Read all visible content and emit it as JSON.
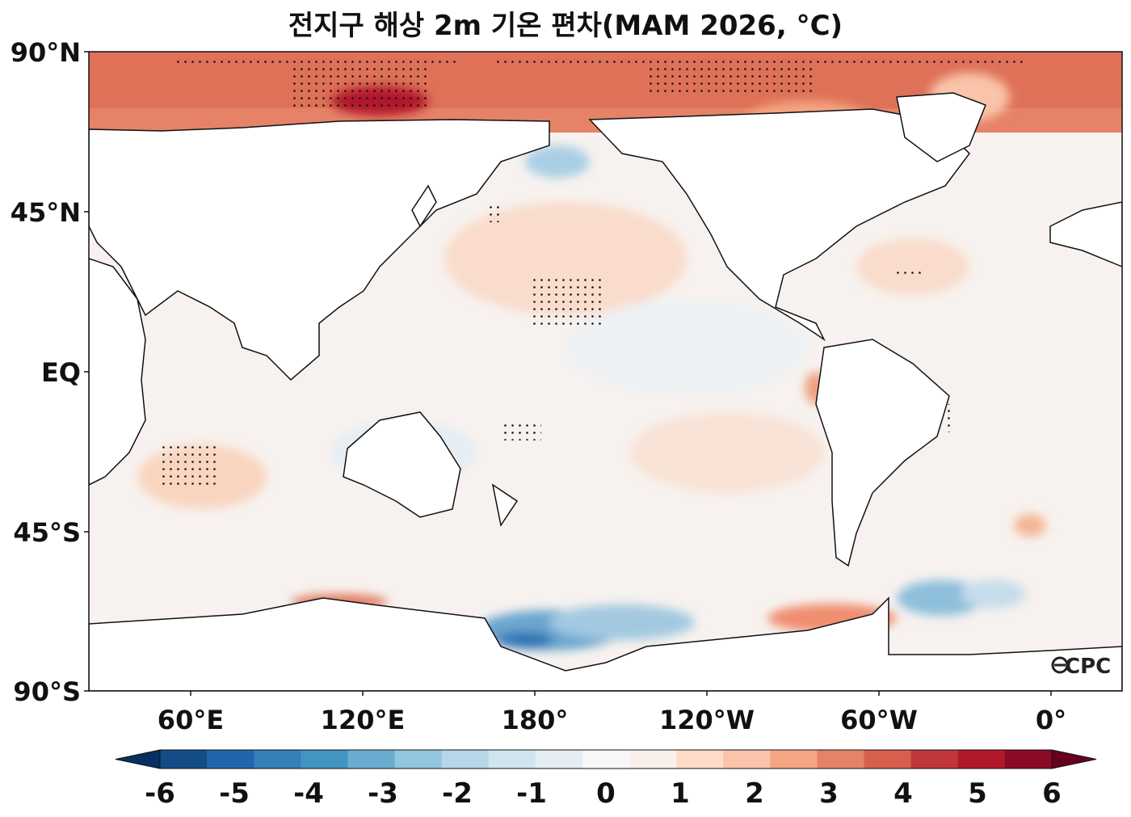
{
  "title": "전지구 해상 2m 기온 편차(MAM 2026, °C)",
  "lat_labels": [
    "90°N",
    "45°N",
    "EQ",
    "45°S",
    "90°S"
  ],
  "lon_labels": [
    "60°E",
    "120°E",
    "180°",
    "120°W",
    "60°W",
    "0°"
  ],
  "colorbar": {
    "ticks": [
      "-6",
      "-5",
      "-4",
      "-3",
      "-2",
      "-1",
      "0",
      "1",
      "2",
      "3",
      "4",
      "5",
      "6"
    ],
    "colors": [
      "#053061",
      "#134c87",
      "#2166ac",
      "#3480b9",
      "#4393c3",
      "#6aacd0",
      "#92c5de",
      "#b5d7e8",
      "#d1e5f0",
      "#e4eef4",
      "#f7f7f7",
      "#f9f0eb",
      "#fddbc7",
      "#f9c4a9",
      "#f4a582",
      "#e58267",
      "#d6604d",
      "#c13639",
      "#b2182b",
      "#8a0b25",
      "#67001f"
    ]
  },
  "logo": "CPC"
}
